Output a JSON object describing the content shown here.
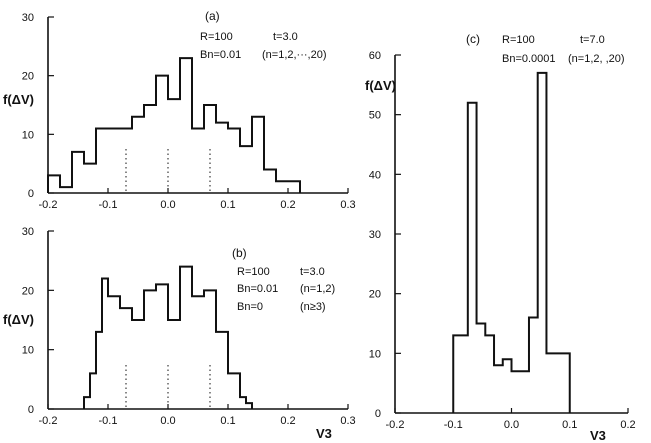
{
  "chart_data": [
    {
      "type": "histogram",
      "panel_label": "(a)",
      "ylabel": "f(ΔV)",
      "xlabel": "",
      "annotations": [
        "R=100",
        "t=3.0",
        "Bn=0.01",
        "(n=1,2,···,20)"
      ],
      "xlim": [
        -0.2,
        0.3
      ],
      "ylim": [
        0,
        30
      ],
      "x_ticks": [
        "-0.2",
        "-0.1",
        "0.0",
        "0.1",
        "0.2",
        "0.3"
      ],
      "y_ticks": [
        "0",
        "10",
        "20",
        "30"
      ],
      "bin_edges": [
        -0.2,
        -0.18,
        -0.16,
        -0.14,
        -0.12,
        -0.1,
        -0.08,
        -0.06,
        -0.04,
        -0.02,
        0.0,
        0.02,
        0.04,
        0.06,
        0.08,
        0.1,
        0.12,
        0.14,
        0.16,
        0.18,
        0.2,
        0.22
      ],
      "values": [
        3,
        1,
        7,
        5,
        11,
        11,
        11,
        13,
        15,
        20,
        16,
        23,
        11,
        15,
        12,
        11,
        8,
        13,
        4,
        2,
        2
      ],
      "dotted_markers_x": [
        -0.07,
        0.0,
        0.07
      ]
    },
    {
      "type": "histogram",
      "panel_label": "(b)",
      "ylabel": "f(ΔV)",
      "xlabel": "V3",
      "annotations": [
        "R=100",
        "t=3.0",
        "Bn=0.01",
        "(n=1,2)",
        "Bn=0",
        "(n≥3)"
      ],
      "xlim": [
        -0.2,
        0.3
      ],
      "ylim": [
        0,
        30
      ],
      "x_ticks": [
        "-0.2",
        "-0.1",
        "0.0",
        "0.1",
        "0.2",
        "0.3"
      ],
      "y_ticks": [
        "0",
        "10",
        "20",
        "30"
      ],
      "bin_edges": [
        -0.14,
        -0.13,
        -0.12,
        -0.11,
        -0.1,
        -0.08,
        -0.06,
        -0.04,
        -0.02,
        0.0,
        0.02,
        0.04,
        0.06,
        0.08,
        0.1,
        0.12,
        0.13,
        0.14
      ],
      "values": [
        2,
        6,
        13,
        22,
        19,
        17,
        15,
        20,
        21,
        15,
        24,
        19,
        20,
        13,
        6,
        2,
        1
      ],
      "dotted_markers_x": [
        -0.07,
        0.0,
        0.07
      ]
    },
    {
      "type": "histogram",
      "panel_label": "(c)",
      "ylabel": "f(ΔV)",
      "xlabel": "V3",
      "annotations": [
        "R=100",
        "t=7.0",
        "Bn=0.0001",
        "(n=1,2,  ,20)"
      ],
      "xlim": [
        -0.2,
        0.2
      ],
      "ylim": [
        0,
        60
      ],
      "x_ticks": [
        "-0.2",
        "-0.1",
        "0.0",
        "0.1",
        "0.2"
      ],
      "y_ticks": [
        "0",
        "10",
        "20",
        "30",
        "40",
        "50",
        "60"
      ],
      "bin_edges": [
        -0.1,
        -0.075,
        -0.06,
        -0.045,
        -0.03,
        -0.015,
        0.0,
        0.015,
        0.03,
        0.045,
        0.06,
        0.075,
        0.1
      ],
      "values": [
        13,
        52,
        15,
        13,
        8,
        9,
        7,
        7,
        16,
        57,
        10,
        10
      ]
    }
  ]
}
